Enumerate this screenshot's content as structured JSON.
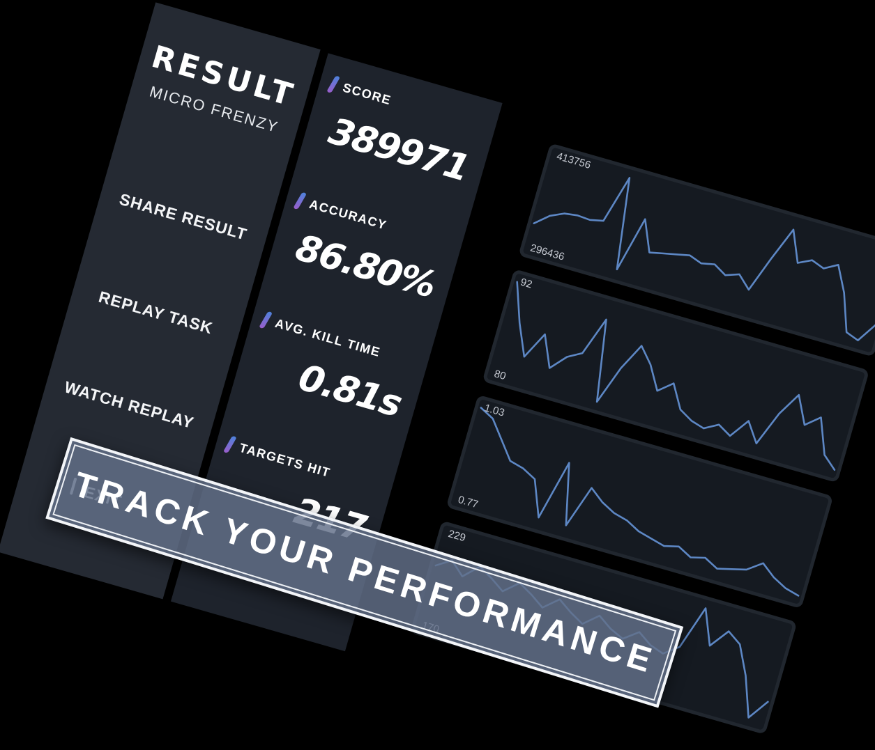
{
  "theme": {
    "background": "#000000",
    "menu_panel": "#252a33",
    "stats_panel": "#1e232c",
    "chart_panel": "#151a21",
    "line_color": "#5d87c4",
    "accent_top": "#4d82db",
    "accent_bottom": "#9a5ecb",
    "banner_fill": "rgba(99,112,137,0.83)"
  },
  "menu": {
    "title": "RESULT",
    "subtitle": "MICRO FRENZY",
    "items": [
      {
        "label": "SHARE RESULT"
      },
      {
        "label": "REPLAY TASK"
      },
      {
        "label": "WATCH REPLAY"
      },
      {
        "label": "EXIT"
      }
    ]
  },
  "stats": [
    {
      "label": "SCORE",
      "value": "389971"
    },
    {
      "label": "ACCURACY",
      "value": "86.80%"
    },
    {
      "label": "AVG. KILL TIME",
      "value": "0.81s"
    },
    {
      "label": "TARGETS HIT",
      "value": "217"
    }
  ],
  "banner": {
    "text": "TRACK YOUR PERFORMANCE"
  },
  "chart_data": [
    {
      "type": "line",
      "metric": "Score",
      "max_label": "413756",
      "min_label": "296436",
      "ymin": 296436,
      "ymax": 413756,
      "grid": false,
      "legend": "none",
      "values": [
        325800,
        340300,
        348100,
        350400,
        349200,
        352800,
        413756,
        298800,
        369200,
        330500,
        334000,
        337500,
        341000,
        335200,
        338700,
        329300,
        335200,
        319900,
        365700,
        407900,
        369200,
        377400,
        371500,
        380900,
        349200,
        302300,
        296436,
        322200
      ]
    },
    {
      "type": "line",
      "metric": "Accuracy",
      "max_label": "92",
      "min_label": "80",
      "ymin": 80,
      "ymax": 92,
      "grid": false,
      "legend": "none",
      "values": [
        92,
        87,
        83,
        86.5,
        82.5,
        84.5,
        85.5,
        90.5,
        80,
        85,
        88.5,
        86.5,
        83.5,
        85,
        82,
        81,
        80.5,
        81.5,
        80.5,
        83,
        80.5,
        85,
        88,
        84.5,
        86,
        81.5,
        80
      ]
    },
    {
      "type": "line",
      "metric": "Avg. Kill Time",
      "max_label": "1.03",
      "min_label": "0.77",
      "ymin": 0.77,
      "ymax": 1.03,
      "grid": false,
      "legend": "none",
      "values": [
        1.03,
        1.01,
        0.96,
        0.91,
        0.9,
        0.88,
        0.78,
        0.95,
        0.78,
        0.9,
        0.87,
        0.85,
        0.84,
        0.82,
        0.81,
        0.8,
        0.81,
        0.79,
        0.8,
        0.78,
        0.79,
        0.8,
        0.83,
        0.8,
        0.78,
        0.77
      ]
    },
    {
      "type": "line",
      "metric": "Targets Hit",
      "max_label": "229",
      "min_label": "170",
      "ymin": 170,
      "ymax": 229,
      "grid": false,
      "legend": "none",
      "values": [
        208,
        214,
        206,
        215,
        210,
        204,
        212,
        207,
        201,
        209,
        203,
        198,
        206,
        200,
        196,
        203,
        197,
        194,
        201,
        229,
        207,
        219,
        213,
        195,
        170,
        183
      ]
    }
  ]
}
